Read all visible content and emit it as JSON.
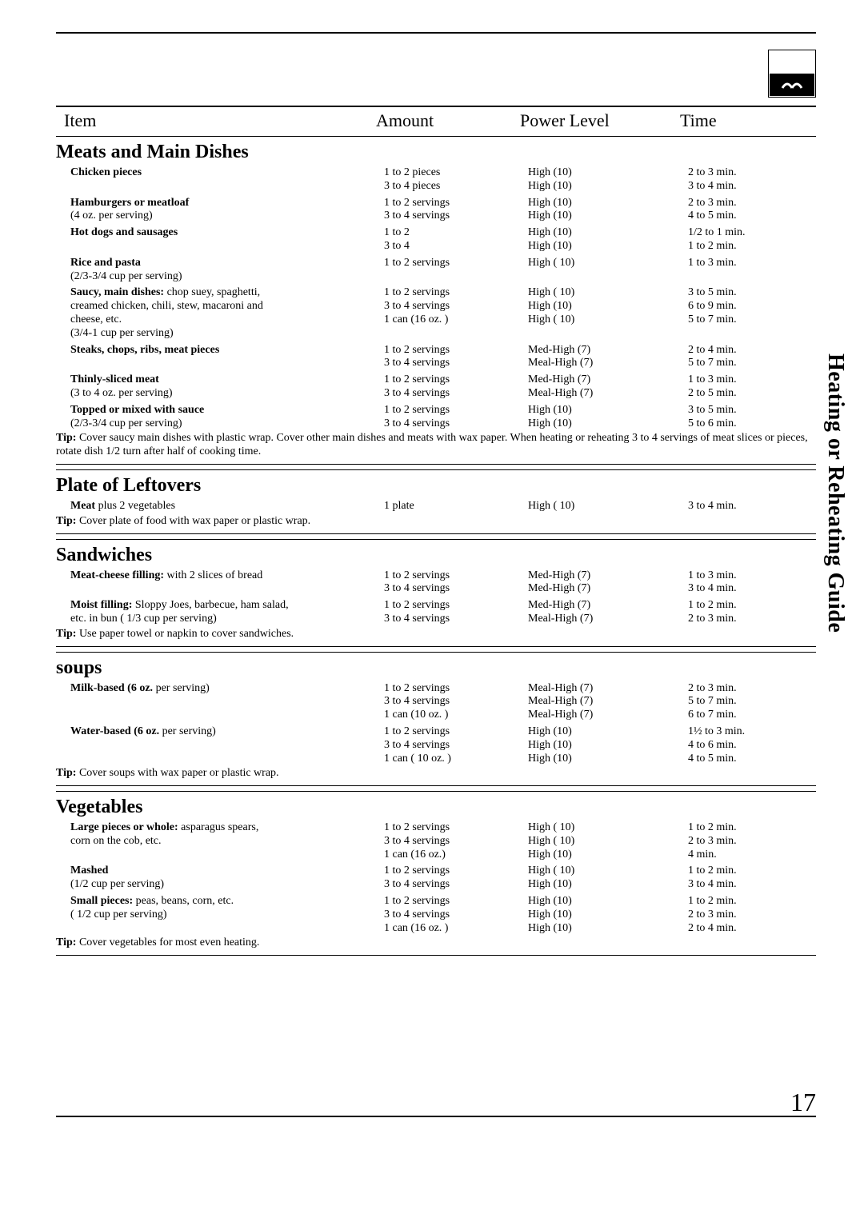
{
  "sideTitle": "Heating or Reheating Guide",
  "pageNumber": "17",
  "headers": {
    "item": "Item",
    "amount": "Amount",
    "power": "Power Level",
    "time": "Time"
  },
  "sections": [
    {
      "title": "Meats and Main Dishes",
      "items": [
        {
          "name": [
            {
              "b": true,
              "t": "Chicken pieces"
            }
          ],
          "lines": [
            {
              "amount": "1 to 2 pieces",
              "power": "High (10)",
              "time": "2 to 3 min."
            },
            {
              "amount": "3 to 4 pieces",
              "power": "High (10)",
              "time": "3 to 4 min."
            }
          ]
        },
        {
          "name": [
            {
              "b": true,
              "t": "Hamburgers or meatloaf"
            },
            {
              "b": false,
              "t": "(4 oz. per serving)"
            }
          ],
          "lines": [
            {
              "amount": "1 to 2 servings",
              "power": "High (10)",
              "time": "2 to 3 min."
            },
            {
              "amount": "3 to 4 servings",
              "power": "High (10)",
              "time": "4 to 5 min."
            }
          ]
        },
        {
          "name": [
            {
              "b": true,
              "t": "Hot dogs and sausages"
            }
          ],
          "lines": [
            {
              "amount": "1 to 2",
              "power": "High (10)",
              "time": "1/2 to 1 min."
            },
            {
              "amount": "3 to 4",
              "power": "High (10)",
              "time": "1 to 2 min."
            }
          ]
        },
        {
          "name": [
            {
              "b": true,
              "t": "Rice and pasta"
            },
            {
              "b": false,
              "t": "(2/3-3/4 cup per serving)"
            }
          ],
          "lines": [
            {
              "amount": "1 to 2 servings",
              "power": "High ( 10)",
              "time": "1 to 3 min."
            }
          ]
        },
        {
          "name": [
            {
              "b": true,
              "t": "Saucy, main dishes: "
            },
            {
              "b": false,
              "t": "chop suey, spaghetti, creamed chicken, chili, stew, macaroni and cheese, etc."
            },
            {
              "b": false,
              "t": "(3/4-1 cup per serving)"
            }
          ],
          "nameLines": [
            "Saucy, main dishes: chop suey, spaghetti,",
            "creamed chicken, chili, stew, macaroni and",
            "cheese, etc.",
            "(3/4-1 cup per serving)"
          ],
          "lines": [
            {
              "amount": "1 to 2 servings",
              "power": "High ( 10)",
              "time": "3 to 5 min."
            },
            {
              "amount": "3 to 4 servings",
              "power": "High (10)",
              "time": "6 to 9 min."
            },
            {
              "amount": "1 can (16 oz. )",
              "power": "High ( 10)",
              "time": "5 to 7 min."
            }
          ]
        },
        {
          "name": [
            {
              "b": true,
              "t": "Steaks, chops, ribs, meat pieces"
            }
          ],
          "lines": [
            {
              "amount": "1 to 2 servings",
              "power": "Med-High (7)",
              "time": "2 to 4 min."
            },
            {
              "amount": "3 to 4 servings",
              "power": "Meal-High (7)",
              "time": "5 to 7 min."
            }
          ]
        },
        {
          "name": [
            {
              "b": true,
              "t": "Thinly-sliced meat"
            },
            {
              "b": false,
              "t": "(3 to 4 oz. per serving)"
            }
          ],
          "lines": [
            {
              "amount": "1 to 2 servings",
              "power": "Med-High (7)",
              "time": "1 to 3 min."
            },
            {
              "amount": "3 to 4 servings",
              "power": "Meal-High (7)",
              "time": "2 to 5 min."
            }
          ]
        },
        {
          "name": [
            {
              "b": true,
              "t": "Topped or mixed with sauce"
            },
            {
              "b": false,
              "t": "(2/3-3/4 cup per serving)"
            }
          ],
          "lines": [
            {
              "amount": "1 to 2 servings",
              "power": "High (10)",
              "time": "3 to 5 min."
            },
            {
              "amount": "3 to 4 servings",
              "power": "High (10)",
              "time": "5 to 6 min."
            }
          ]
        }
      ],
      "tip": "Cover saucy main dishes with plastic wrap. Cover other main dishes and meats with wax paper. When heating or reheating 3 to 4 servings of meat slices or pieces, rotate dish 1/2 turn after half of cooking time."
    },
    {
      "title": "Plate of Leftovers",
      "items": [
        {
          "name": [
            {
              "b": true,
              "t": "Meat "
            },
            {
              "b": false,
              "t": "plus 2 vegetables"
            }
          ],
          "lines": [
            {
              "amount": "1 plate",
              "power": "High ( 10)",
              "time": "3 to 4 min."
            }
          ]
        }
      ],
      "tip": "Cover plate of food with wax paper or plastic wrap."
    },
    {
      "title": "Sandwiches",
      "items": [
        {
          "name": [
            {
              "b": true,
              "t": "Meat-cheese filling: "
            },
            {
              "b": false,
              "t": "with 2 slices of bread"
            }
          ],
          "lines": [
            {
              "amount": "1 to 2 servings",
              "power": "Med-High (7)",
              "time": "1 to 3 min."
            },
            {
              "amount": "3 to 4 servings",
              "power": "Med-High (7)",
              "time": "3 to 4 min."
            }
          ]
        },
        {
          "name": [
            {
              "b": true,
              "t": "Moist filling: "
            },
            {
              "b": false,
              "t": "Sloppy Joes, barbecue, ham salad, etc. in bun ( 1/3 cup per serving)"
            }
          ],
          "nameLines": [
            "Moist filling: Sloppy Joes, barbecue, ham salad,",
            "etc. in bun ( 1/3 cup per serving)"
          ],
          "lines": [
            {
              "amount": "1 to 2 servings",
              "power": "Med-High (7)",
              "time": "1 to 2 min."
            },
            {
              "amount": "3 to 4 servings",
              "power": "Meal-High (7)",
              "time": "2 to 3 min."
            }
          ]
        }
      ],
      "tip": "Use paper towel or napkin to cover sandwiches."
    },
    {
      "title": "soups",
      "items": [
        {
          "name": [
            {
              "b": true,
              "t": "Milk-based (6 oz. "
            },
            {
              "b": false,
              "t": "per serving)"
            }
          ],
          "lines": [
            {
              "amount": "1 to 2 servings",
              "power": "Meal-High (7)",
              "time": "2 to 3 min."
            },
            {
              "amount": "3 to 4 servings",
              "power": "Meal-High (7)",
              "time": "5 to 7 min."
            },
            {
              "amount": "1 can (10 oz. )",
              "power": "Meal-High (7)",
              "time": "6 to 7 min."
            }
          ]
        },
        {
          "name": [
            {
              "b": true,
              "t": "Water-based (6 oz. "
            },
            {
              "b": false,
              "t": "per serving)"
            }
          ],
          "lines": [
            {
              "amount": "1 to 2 servings",
              "power": "High (10)",
              "time": "1½ to 3 min."
            },
            {
              "amount": "3 to 4 servings",
              "power": "High (10)",
              "time": "4 to 6 min."
            },
            {
              "amount": "1 can ( 10 oz. )",
              "power": "High (10)",
              "time": "4 to 5 min."
            }
          ]
        }
      ],
      "tip": "Cover soups with wax paper or plastic wrap."
    },
    {
      "title": "Vegetables",
      "items": [
        {
          "name": [
            {
              "b": true,
              "t": "Large pieces or whole: "
            },
            {
              "b": false,
              "t": "asparagus spears, corn on the cob, etc."
            }
          ],
          "nameLines": [
            "Large pieces or whole: asparagus spears,",
            "corn on the cob, etc."
          ],
          "lines": [
            {
              "amount": "1 to 2 servings",
              "power": "High ( 10)",
              "time": "1 to 2 min."
            },
            {
              "amount": "3 to 4 servings",
              "power": "High ( 10)",
              "time": "2 to 3 min."
            },
            {
              "amount": "1 can (16 oz.)",
              "power": "High (10)",
              "time": "4 min."
            }
          ]
        },
        {
          "name": [
            {
              "b": true,
              "t": "Mashed"
            },
            {
              "b": false,
              "t": "(1/2 cup per serving)"
            }
          ],
          "nameAsLines": true,
          "lines": [
            {
              "amount": "1 to 2 servings",
              "power": "High ( 10)",
              "time": "1 to 2 min."
            },
            {
              "amount": "3 to 4 servings",
              "power": "High (10)",
              "time": "3 to 4 min."
            }
          ]
        },
        {
          "name": [
            {
              "b": true,
              "t": "Small pieces: "
            },
            {
              "b": false,
              "t": "peas, beans, corn, etc."
            },
            {
              "b": false,
              "t": "( 1/2 cup per serving)"
            }
          ],
          "nameLines": [
            "Small pieces: peas, beans, corn, etc.",
            "( 1/2 cup per serving)"
          ],
          "lines": [
            {
              "amount": "1 to 2 servings",
              "power": "High (10)",
              "time": "1 to 2 min."
            },
            {
              "amount": "3 to 4 servings",
              "power": "High (10)",
              "time": "2 to 3 min."
            },
            {
              "amount": "1 can (16 oz. )",
              "power": "High (10)",
              "time": "2 to 4 min."
            }
          ]
        }
      ],
      "tip": "Cover vegetables for most even heating."
    }
  ],
  "tipLabel": "Tip: "
}
